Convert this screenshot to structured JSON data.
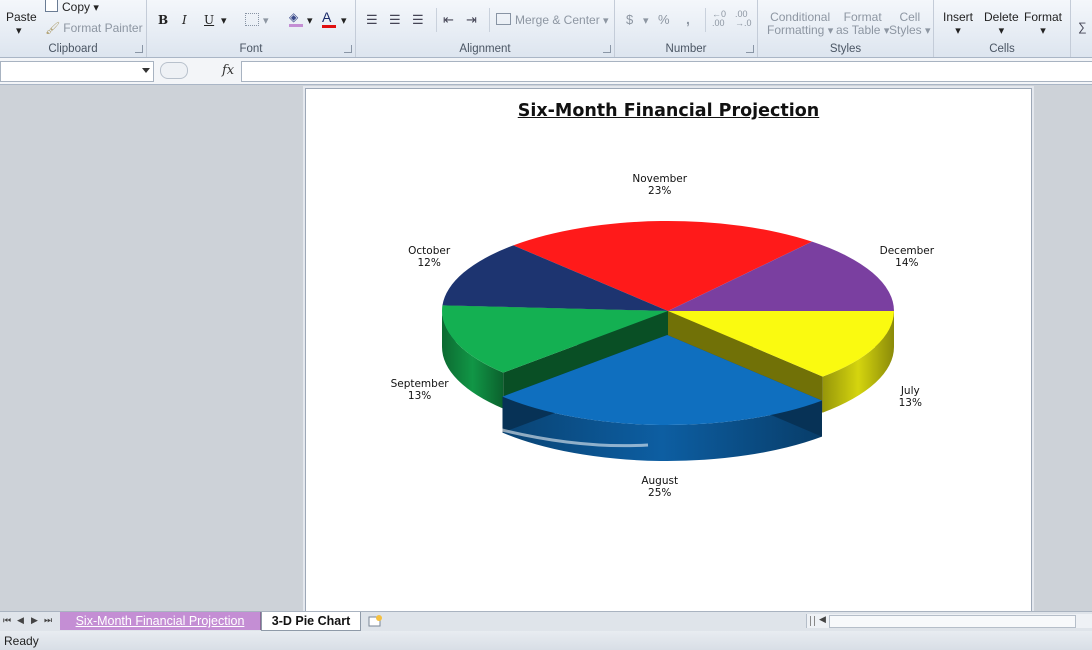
{
  "ribbon": {
    "clipboard": {
      "label": "Clipboard",
      "paste": "Paste",
      "copy": "Copy",
      "format_painter": "Format Painter"
    },
    "font": {
      "label": "Font",
      "bold": "B",
      "italic": "I",
      "underline": "U",
      "font_color": "A"
    },
    "alignment": {
      "label": "Alignment",
      "merge_center": "Merge & Center"
    },
    "number": {
      "label": "Number",
      "currency": "$",
      "percent": "%",
      "comma": ","
    },
    "styles": {
      "label": "Styles",
      "conditional_formatting_1": "Conditional",
      "conditional_formatting_2": "Formatting",
      "format_table_1": "Format",
      "format_table_2": "as Table",
      "cell_styles_1": "Cell",
      "cell_styles_2": "Styles"
    },
    "cells": {
      "label": "Cells",
      "insert": "Insert",
      "delete": "Delete",
      "format": "Format"
    }
  },
  "formula_bar": {
    "fx": "fx",
    "name_box": "",
    "value": ""
  },
  "colors": {
    "accent_tab": "#c48ed4",
    "slice_july": "#fafa10",
    "slice_august": "#0f6fbf",
    "slice_september": "#14b052",
    "slice_october": "#1d3470",
    "slice_november": "#ff1a1a",
    "slice_december": "#7a3fa0"
  },
  "chart_data": {
    "type": "pie",
    "title": "Six-Month Financial Projection",
    "categories": [
      "July",
      "August",
      "September",
      "October",
      "November",
      "December"
    ],
    "values": [
      13,
      25,
      13,
      12,
      23,
      14
    ],
    "value_labels": [
      "13%",
      "25%",
      "13%",
      "12%",
      "23%",
      "14%"
    ],
    "style": "3d",
    "legend": "none",
    "exploded": "August"
  },
  "sheet_tabs": [
    "Six-Month Financial Projection",
    "3-D Pie Chart"
  ],
  "active_tab": "3-D Pie Chart",
  "status": {
    "text": "Ready"
  }
}
